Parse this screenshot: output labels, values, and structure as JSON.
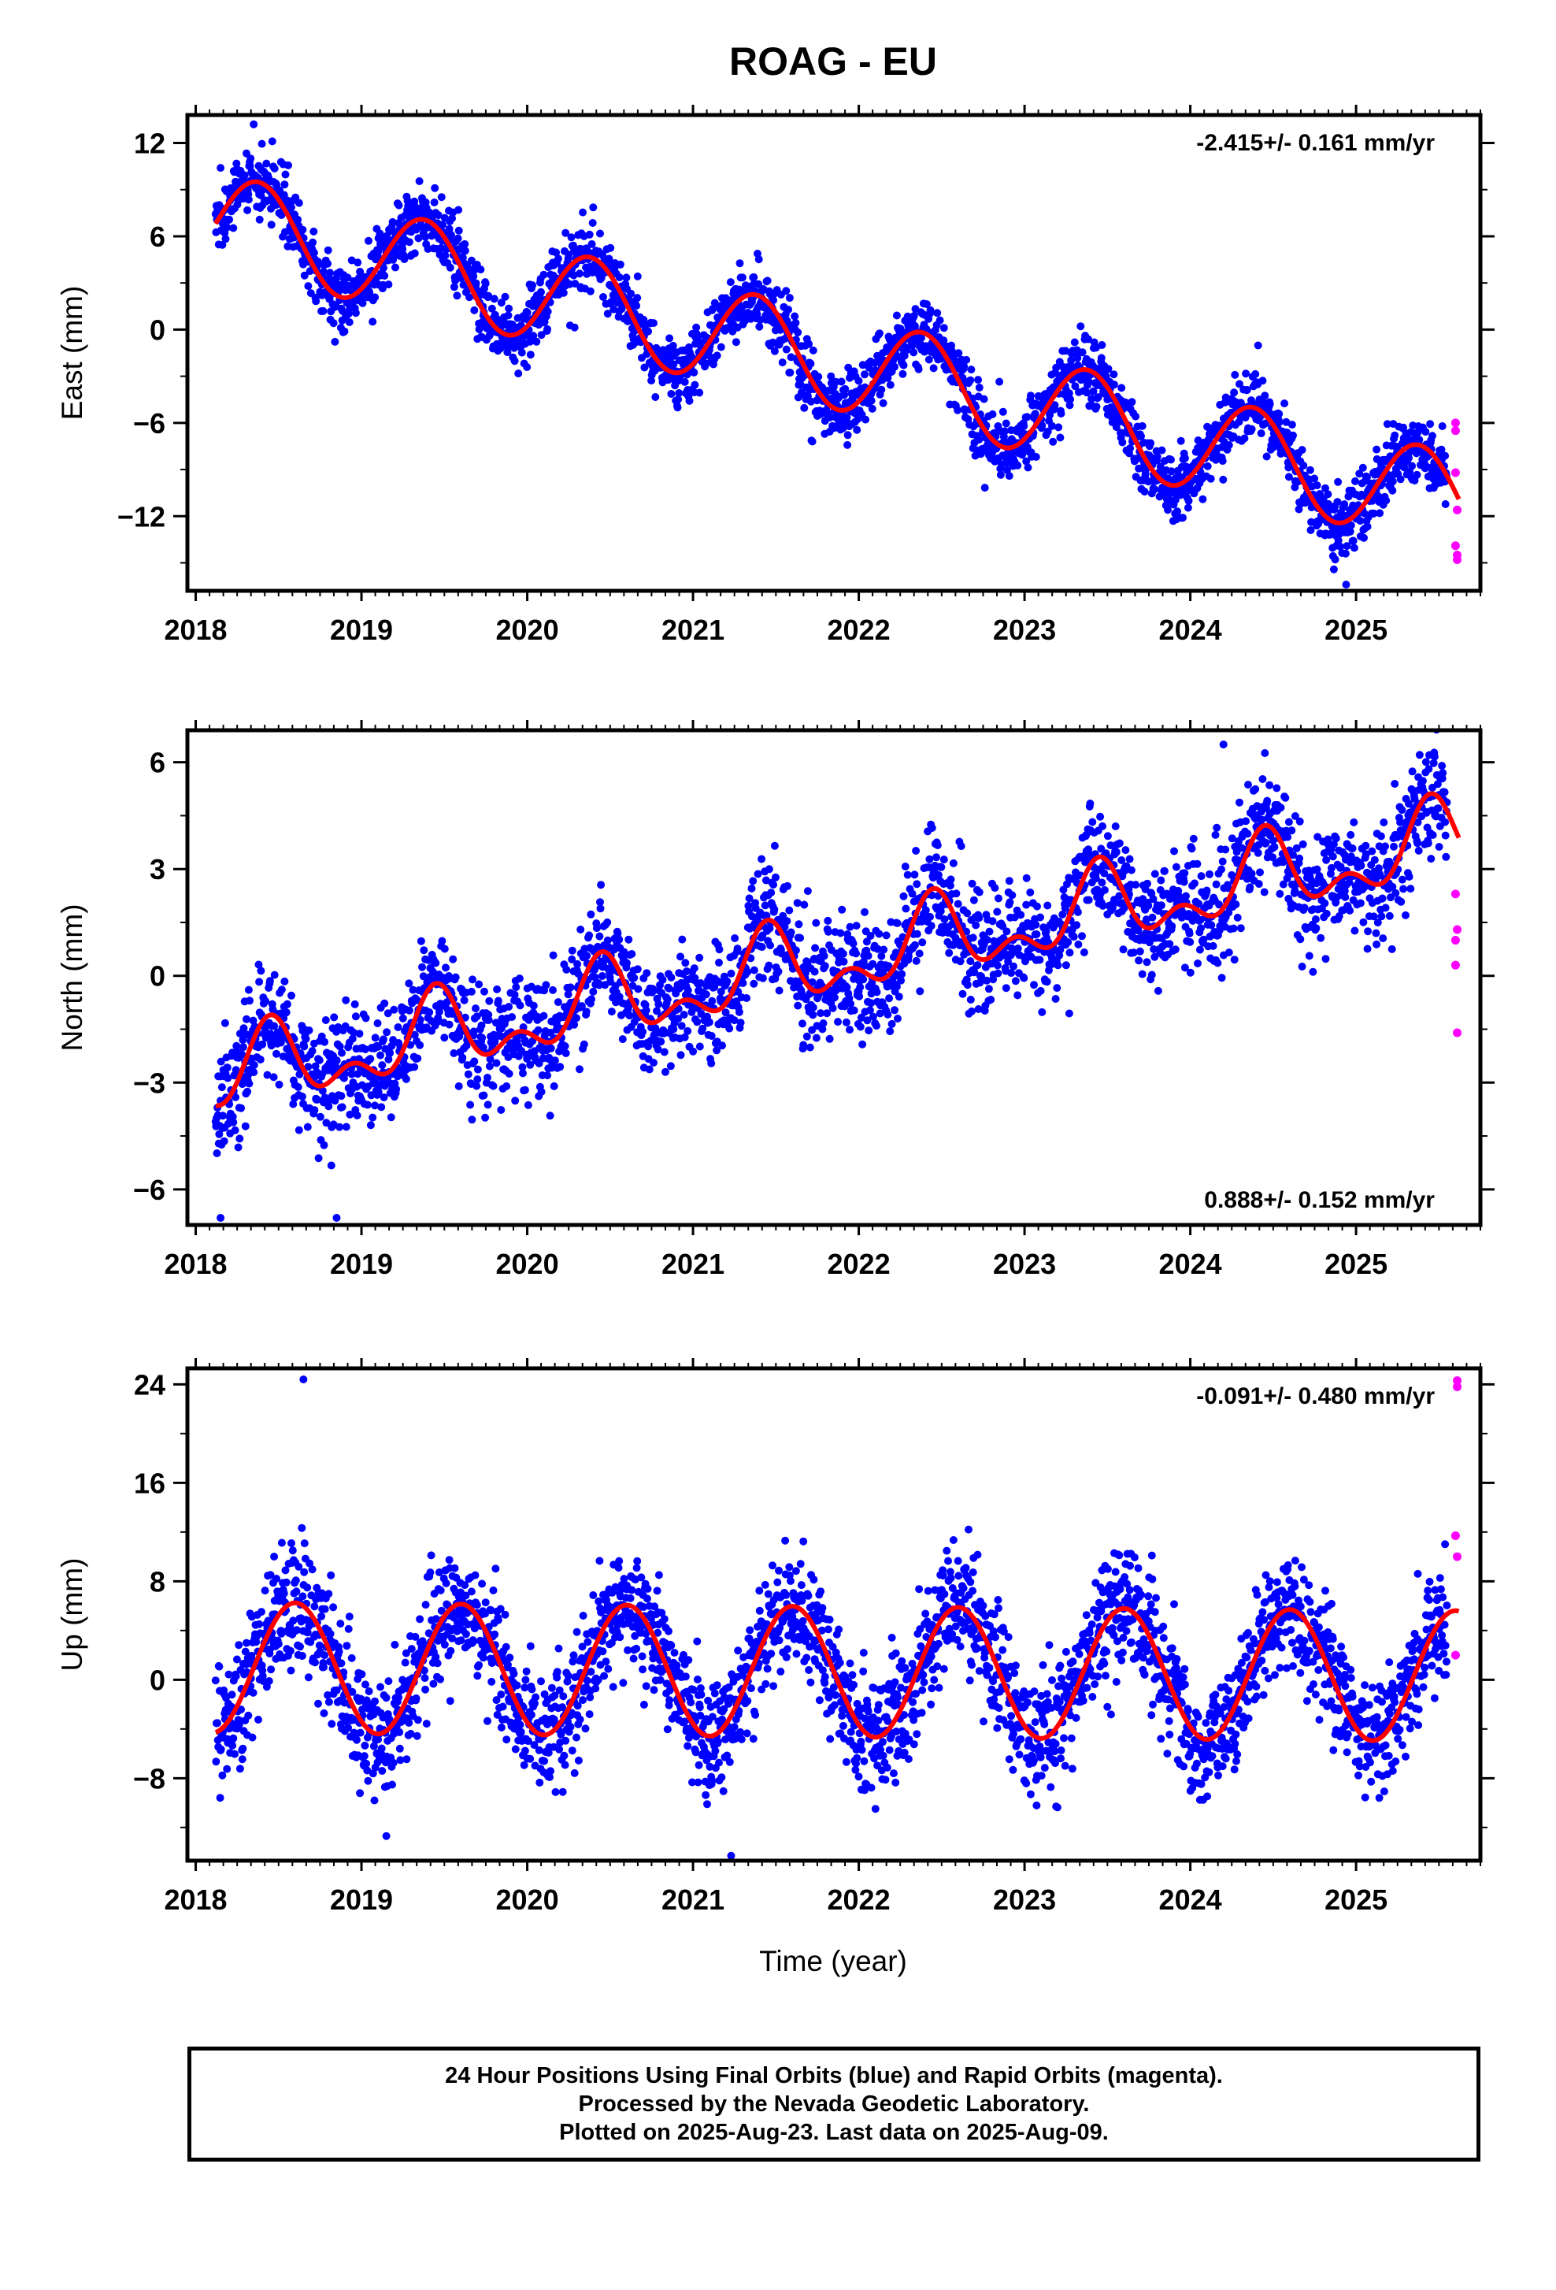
{
  "title": "ROAG - EU",
  "xlabel": "Time (year)",
  "footer": {
    "line1": "24 Hour Positions Using Final Orbits (blue) and Rapid Orbits (magenta).",
    "line2": "Processed by the Nevada Geodetic Laboratory.",
    "line3": "Plotted on 2025-Aug-23. Last data on 2025-Aug-09."
  },
  "colors": {
    "final_orbits": "#0000ff",
    "rapid_orbits": "#ff00ff",
    "model_fit": "#ff0000"
  },
  "chart_data": [
    {
      "type": "scatter",
      "panel": "East",
      "ylabel": "East (mm)",
      "xlim": [
        2017.95,
        2025.75
      ],
      "ylim": [
        -16.8,
        13.8
      ],
      "xticks": [
        2018,
        2019,
        2020,
        2021,
        2022,
        2023,
        2024,
        2025
      ],
      "yticks": [
        -12,
        -6,
        0,
        6,
        12
      ],
      "ytick_labels": [
        "−12",
        "−6",
        "0",
        "6",
        "12"
      ],
      "rate_label": "-2.415+/- 0.161 mm/yr",
      "rate_label_position": "top-right",
      "model": {
        "t0": 2018.12,
        "t1": 2025.62,
        "intercept": 7.3,
        "rate": -2.415,
        "annual_amp": 3.1,
        "peak": 0.38,
        "ref_year": 2018.0
      },
      "scatter_noise": 1.1,
      "data_end": 2025.55,
      "rapid_points": [
        [
          2025.6,
          -6.0
        ],
        [
          2025.6,
          -6.5
        ],
        [
          2025.6,
          -9.2
        ],
        [
          2025.61,
          -11.6
        ],
        [
          2025.6,
          -13.9
        ],
        [
          2025.61,
          -14.5
        ],
        [
          2025.61,
          -14.8
        ]
      ],
      "sparse_extremes": [
        [
          2021.72,
          -7.2
        ],
        [
          2024.94,
          -16.4
        ],
        [
          2018.35,
          13.2
        ]
      ]
    },
    {
      "type": "scatter",
      "panel": "North",
      "ylabel": "North (mm)",
      "xlim": [
        2017.95,
        2025.75
      ],
      "ylim": [
        -7.0,
        6.9
      ],
      "xticks": [
        2018,
        2019,
        2020,
        2021,
        2022,
        2023,
        2024,
        2025
      ],
      "yticks": [
        -6,
        -3,
        0,
        3,
        6
      ],
      "ytick_labels": [
        "−6",
        "−3",
        "0",
        "3",
        "6"
      ],
      "rate_label": "0.888+/- 0.152 mm/yr",
      "rate_label_position": "bottom-right",
      "model": {
        "t0": 2018.12,
        "t1": 2025.62,
        "intercept": -3.0,
        "rate": 0.888,
        "annual_amp": 0.9,
        "peak": 0.45,
        "semi_amp": 0.6,
        "ref_year": 2018.0
      },
      "scatter_noise": 0.8,
      "data_end": 2025.55,
      "rapid_points": [
        [
          2025.6,
          2.3
        ],
        [
          2025.61,
          1.3
        ],
        [
          2025.6,
          1.0
        ],
        [
          2025.6,
          0.3
        ],
        [
          2025.61,
          -1.6
        ]
      ],
      "sparse_extremes": [
        [
          2024.2,
          6.5
        ],
        [
          2018.15,
          -6.8
        ],
        [
          2018.85,
          -6.8
        ]
      ]
    },
    {
      "type": "scatter",
      "panel": "Up",
      "ylabel": "Up (mm)",
      "xlim": [
        2017.95,
        2025.75
      ],
      "ylim": [
        -14.7,
        25.3
      ],
      "xticks": [
        2018,
        2019,
        2020,
        2021,
        2022,
        2023,
        2024,
        2025
      ],
      "yticks": [
        -8,
        0,
        8,
        16,
        24
      ],
      "ytick_labels": [
        "−8",
        "0",
        "8",
        "16",
        "24"
      ],
      "rate_label": "-0.091+/- 0.480 mm/yr",
      "rate_label_position": "top-right",
      "model": {
        "t0": 2018.12,
        "t1": 2025.62,
        "intercept": 1.0,
        "rate": -0.091,
        "annual_amp": 5.3,
        "peak": 0.6,
        "ref_year": 2018.0
      },
      "scatter_noise": 2.5,
      "data_end": 2025.55,
      "rapid_points": [
        [
          2025.61,
          24.3
        ],
        [
          2025.61,
          23.8
        ],
        [
          2025.6,
          11.7
        ],
        [
          2025.61,
          10.0
        ],
        [
          2025.6,
          2.0
        ]
      ],
      "sparse_extremes": [
        [
          2018.65,
          24.4
        ],
        [
          2021.23,
          -14.3
        ],
        [
          2019.15,
          -12.7
        ]
      ]
    }
  ]
}
